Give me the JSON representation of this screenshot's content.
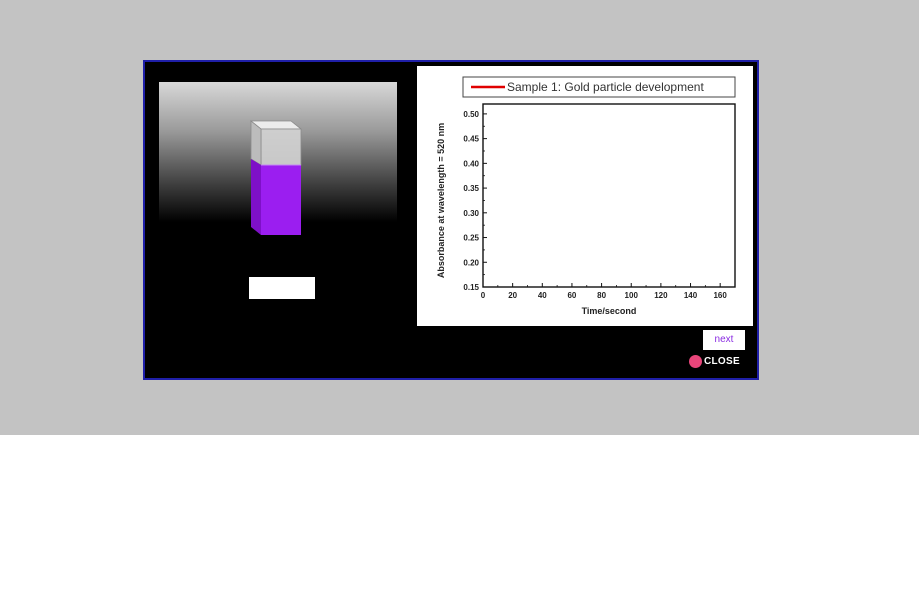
{
  "dialog": {
    "value_box_text": "",
    "next_label": "next",
    "close_label": "CLOSE"
  },
  "cuvette": {
    "liquid_color": "#9b1ef0",
    "glass_color": "#d9d9d9"
  },
  "colors": {
    "backdrop": "#c3c3c3",
    "dialog_border": "#1f1fa8",
    "series": "#e00000",
    "close_dot": "#e8457a",
    "next_text": "#8a2be2"
  },
  "chart_data": {
    "type": "line",
    "title": "",
    "xlabel": "Time/second",
    "ylabel": "Absorbance at wavelength = 520 nm",
    "xlim": [
      0,
      170
    ],
    "ylim": [
      0.15,
      0.52
    ],
    "xticks": [
      0,
      20,
      40,
      60,
      80,
      100,
      120,
      140,
      160
    ],
    "yticks": [
      0.15,
      0.2,
      0.25,
      0.3,
      0.35,
      0.4,
      0.45,
      0.5
    ],
    "xtick_labels": [
      "0",
      "20",
      "40",
      "60",
      "80",
      "100",
      "120",
      "140",
      "160"
    ],
    "ytick_labels": [
      "0.15",
      "0.20",
      "0.25",
      "0.30",
      "0.35",
      "0.40",
      "0.45",
      "0.50"
    ],
    "legend_position": "top",
    "series": [
      {
        "name": "Sample 1: Gold particle development",
        "x": [],
        "y": []
      }
    ]
  }
}
